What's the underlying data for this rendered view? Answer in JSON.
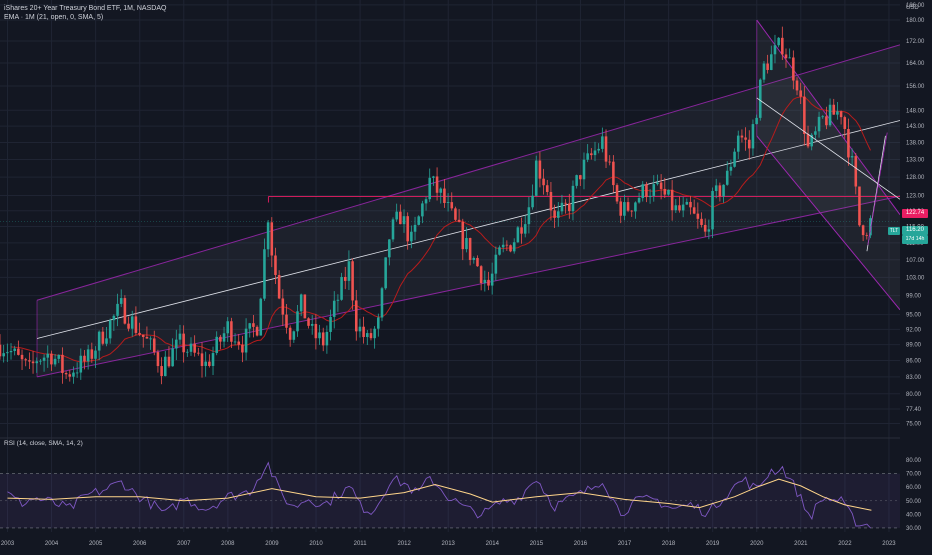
{
  "header": {
    "title": "iShares 20+ Year Treasury Bond ETF, 1M, NASDAQ",
    "ema_label": "EMA · 1M (21, open, 0, SMA, 5)",
    "rsi_label": "RSI (14, close, SMA, 14, 2)",
    "currency": "USD"
  },
  "price_tags": {
    "level_line": "122.74",
    "last_price": "116.20",
    "countdown": "17d 14h",
    "ticker": "TLT"
  },
  "colors": {
    "background": "#131722",
    "up": "#26a69a",
    "down": "#ef5350",
    "channel": "#9c27b0",
    "ema": "#b71c1c",
    "rsi": "#7e57c2",
    "rsi_ma": "#ffd58a",
    "level": "#e91e63",
    "trendline": "#ffffff"
  },
  "chart_data": [
    {
      "type": "candlestick",
      "title": "iShares 20+ Year Treasury Bond ETF, 1M, NASDAQ",
      "y_scale": "log",
      "ylim": [
        73,
        188
      ],
      "y_ticks": [
        75.0,
        77.4,
        80.0,
        83.0,
        86.0,
        89.0,
        92.0,
        95.0,
        99.0,
        103.0,
        107.0,
        111.0,
        115.0,
        119.0,
        123.0,
        128.0,
        133.0,
        138.0,
        143.0,
        148.0,
        156.0,
        164.0,
        172.0,
        180.0,
        186.0
      ],
      "x_ticks": [
        "2003",
        "2004",
        "2005",
        "2006",
        "2007",
        "2008",
        "2009",
        "2010",
        "2011",
        "2012",
        "2013",
        "2014",
        "2015",
        "2016",
        "2017",
        "2018",
        "2019",
        "2020",
        "2021",
        "2022",
        "2023"
      ],
      "xlim": [
        2002.83,
        2023.25
      ],
      "grid": true,
      "closes": [
        [
          2002.83,
          89.0
        ],
        [
          2003.0,
          88.3
        ],
        [
          2003.5,
          84.0
        ],
        [
          2003.67,
          86.5
        ],
        [
          2004.0,
          87.2
        ],
        [
          2004.33,
          83.4
        ],
        [
          2004.5,
          84.5
        ],
        [
          2004.83,
          86.2
        ],
        [
          2005.17,
          91.2
        ],
        [
          2005.58,
          96.5
        ],
        [
          2005.83,
          93.5
        ],
        [
          2006.17,
          89.5
        ],
        [
          2006.5,
          85.0
        ],
        [
          2006.92,
          89.2
        ],
        [
          2007.5,
          85.2
        ],
        [
          2007.75,
          88.6
        ],
        [
          2008.0,
          92.5
        ],
        [
          2008.33,
          89.4
        ],
        [
          2008.67,
          93.0
        ],
        [
          2008.92,
          119.0
        ],
        [
          2009.0,
          109.0
        ],
        [
          2009.17,
          98.5
        ],
        [
          2009.42,
          91.5
        ],
        [
          2009.67,
          97.0
        ],
        [
          2009.92,
          91.0
        ],
        [
          2010.17,
          89.5
        ],
        [
          2010.5,
          98.5
        ],
        [
          2010.75,
          105.5
        ],
        [
          2010.92,
          93.0
        ],
        [
          2011.17,
          89.5
        ],
        [
          2011.42,
          93.0
        ],
        [
          2011.67,
          113.0
        ],
        [
          2011.92,
          118.0
        ],
        [
          2012.17,
          111.0
        ],
        [
          2012.58,
          127.0
        ],
        [
          2012.83,
          123.0
        ],
        [
          2013.0,
          119.0
        ],
        [
          2013.42,
          110.0
        ],
        [
          2013.67,
          105.5
        ],
        [
          2013.92,
          101.0
        ],
        [
          2014.17,
          108.5
        ],
        [
          2014.5,
          112.0
        ],
        [
          2014.83,
          120.5
        ],
        [
          2015.0,
          132.0
        ],
        [
          2015.25,
          125.0
        ],
        [
          2015.42,
          115.8
        ],
        [
          2015.75,
          121.0
        ],
        [
          2016.0,
          129.5
        ],
        [
          2016.5,
          138.5
        ],
        [
          2016.83,
          121.0
        ],
        [
          2017.0,
          119.0
        ],
        [
          2017.5,
          125.0
        ],
        [
          2017.83,
          124.0
        ],
        [
          2018.17,
          119.0
        ],
        [
          2018.5,
          118.5
        ],
        [
          2018.83,
          113.0
        ],
        [
          2019.0,
          121.5
        ],
        [
          2019.33,
          128.0
        ],
        [
          2019.58,
          141.0
        ],
        [
          2019.83,
          136.5
        ],
        [
          2020.17,
          163.0
        ],
        [
          2020.58,
          171.0
        ],
        [
          2020.92,
          157.5
        ],
        [
          2021.17,
          135.5
        ],
        [
          2021.5,
          145.0
        ],
        [
          2021.92,
          148.0
        ],
        [
          2022.17,
          131.0
        ],
        [
          2022.33,
          115.5
        ],
        [
          2022.5,
          115.0
        ],
        [
          2022.58,
          116.2
        ]
      ]
    },
    {
      "type": "line",
      "title": "RSI (14, close, SMA, 14, 2)",
      "ylim": [
        27,
        83
      ],
      "y_ticks": [
        30.0,
        40.0,
        50.0,
        60.0,
        70.0,
        80.0
      ],
      "band": [
        30,
        70
      ],
      "series": [
        {
          "values": [
            [
              2003.0,
              55
            ],
            [
              2003.3,
              48
            ],
            [
              2003.6,
              52
            ],
            [
              2004.0,
              49
            ],
            [
              2004.4,
              44
            ],
            [
              2004.8,
              54
            ],
            [
              2005.2,
              58
            ],
            [
              2005.6,
              64
            ],
            [
              2005.9,
              55
            ],
            [
              2006.3,
              47
            ],
            [
              2006.6,
              40
            ],
            [
              2007.0,
              52
            ],
            [
              2007.5,
              44
            ],
            [
              2008.0,
              53
            ],
            [
              2008.5,
              57
            ],
            [
              2008.9,
              78
            ],
            [
              2009.2,
              55
            ],
            [
              2009.5,
              45
            ],
            [
              2009.8,
              52
            ],
            [
              2010.2,
              47
            ],
            [
              2010.5,
              55
            ],
            [
              2010.8,
              60
            ],
            [
              2011.0,
              46
            ],
            [
              2011.3,
              42
            ],
            [
              2011.7,
              66
            ],
            [
              2012.0,
              63
            ],
            [
              2012.3,
              55
            ],
            [
              2012.6,
              67
            ],
            [
              2013.0,
              53
            ],
            [
              2013.4,
              44
            ],
            [
              2013.8,
              40
            ],
            [
              2014.2,
              49
            ],
            [
              2014.6,
              52
            ],
            [
              2015.0,
              67
            ],
            [
              2015.4,
              46
            ],
            [
              2015.8,
              52
            ],
            [
              2016.2,
              58
            ],
            [
              2016.5,
              66
            ],
            [
              2016.9,
              41
            ],
            [
              2017.3,
              50
            ],
            [
              2017.7,
              51
            ],
            [
              2018.1,
              44
            ],
            [
              2018.5,
              47
            ],
            [
              2018.9,
              41
            ],
            [
              2019.3,
              55
            ],
            [
              2019.7,
              66
            ],
            [
              2020.0,
              58
            ],
            [
              2020.3,
              72
            ],
            [
              2020.6,
              74
            ],
            [
              2020.9,
              58
            ],
            [
              2021.2,
              38
            ],
            [
              2021.5,
              52
            ],
            [
              2021.9,
              50
            ],
            [
              2022.2,
              36
            ],
            [
              2022.4,
              32
            ],
            [
              2022.6,
              33
            ]
          ]
        },
        {
          "values": [
            [
              2003.0,
              52
            ],
            [
              2004.0,
              51
            ],
            [
              2005.0,
              53
            ],
            [
              2006.0,
              53
            ],
            [
              2007.0,
              50
            ],
            [
              2008.0,
              52
            ],
            [
              2009.0,
              59
            ],
            [
              2010.0,
              53
            ],
            [
              2011.0,
              52
            ],
            [
              2012.0,
              56
            ],
            [
              2012.7,
              62
            ],
            [
              2013.5,
              55
            ],
            [
              2014.0,
              49
            ],
            [
              2015.0,
              53
            ],
            [
              2016.0,
              56
            ],
            [
              2017.0,
              51
            ],
            [
              2018.0,
              48
            ],
            [
              2018.7,
              45
            ],
            [
              2019.5,
              53
            ],
            [
              2020.0,
              60
            ],
            [
              2020.5,
              66
            ],
            [
              2021.0,
              61
            ],
            [
              2021.5,
              53
            ],
            [
              2022.0,
              47
            ],
            [
              2022.6,
              43
            ]
          ]
        }
      ]
    }
  ]
}
